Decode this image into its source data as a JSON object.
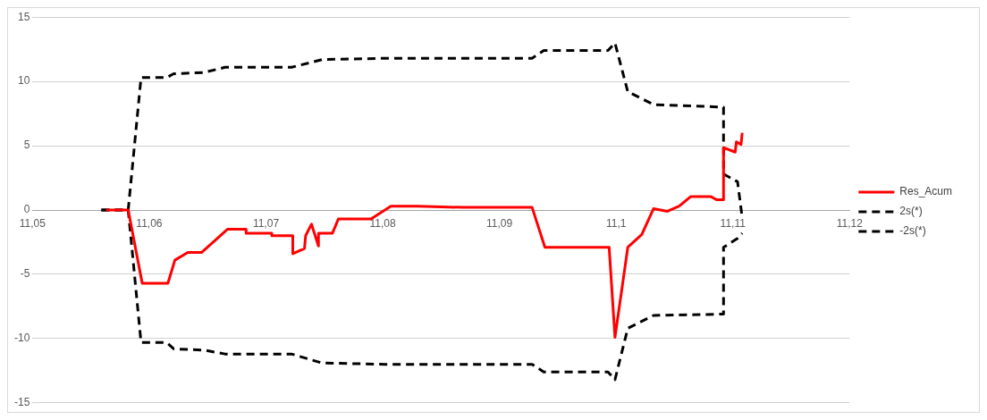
{
  "chart_data": {
    "type": "line",
    "xlim": [
      11.05,
      11.12
    ],
    "ylim": [
      -15,
      15
    ],
    "xticks": [
      {
        "value": 11.05,
        "label": "11,05"
      },
      {
        "value": 11.06,
        "label": "11,06"
      },
      {
        "value": 11.07,
        "label": "11,07"
      },
      {
        "value": 11.08,
        "label": "11,08"
      },
      {
        "value": 11.09,
        "label": "11,09"
      },
      {
        "value": 11.1,
        "label": "11,1"
      },
      {
        "value": 11.11,
        "label": "11,11"
      },
      {
        "value": 11.12,
        "label": "11,12"
      }
    ],
    "yticks": [
      -15,
      -10,
      -5,
      0,
      5,
      10,
      15
    ],
    "grid": "y",
    "legend": "right",
    "series": [
      {
        "name": "Res_Acum",
        "color": "#ff0000",
        "line_style": "solid",
        "x": [
          11.0563,
          11.0582,
          11.0594,
          11.0616,
          11.0622,
          11.0633,
          11.0645,
          11.0667,
          11.0683,
          11.0683,
          11.0705,
          11.0705,
          11.0723,
          11.0723,
          11.0733,
          11.0734,
          11.0739,
          11.0745,
          11.0745,
          11.0757,
          11.0762,
          11.079,
          11.0807,
          11.083,
          11.0869,
          11.0928,
          11.0939,
          11.0994,
          11.0999,
          11.101,
          11.1022,
          11.1032,
          11.1044,
          11.1054,
          11.1064,
          11.1081,
          11.1086,
          11.1092,
          11.1092,
          11.1102,
          11.1103,
          11.1107,
          11.1108
        ],
        "values": [
          0,
          0,
          -5.7,
          -5.7,
          -3.9,
          -3.3,
          -3.3,
          -1.5,
          -1.5,
          -1.8,
          -1.8,
          -2,
          -2,
          -3.4,
          -3,
          -2,
          -1.1,
          -2.8,
          -1.8,
          -1.8,
          -0.7,
          -0.7,
          0.3,
          0.3,
          0.2,
          0.2,
          -2.9,
          -2.9,
          -9.9,
          -2.9,
          -1.9,
          0.1,
          -0.1,
          0.3,
          1.05,
          1.05,
          0.8,
          0.8,
          4.85,
          4.5,
          5.3,
          5.1,
          6
        ]
      },
      {
        "name": "2s(*)",
        "color": "#000000",
        "line_style": "dashed",
        "x": [
          11.0559,
          11.0582,
          11.0593,
          11.0615,
          11.0621,
          11.0647,
          11.0665,
          11.0722,
          11.0748,
          11.0802,
          11.0928,
          11.0938,
          11.0993,
          11.0999,
          11.101,
          11.1032,
          11.1092,
          11.1092,
          11.1104,
          11.1108
        ],
        "values": [
          0,
          0,
          10.3,
          10.3,
          10.6,
          10.7,
          11.1,
          11.1,
          11.7,
          11.8,
          11.8,
          12.4,
          12.4,
          13,
          9.2,
          8.2,
          8,
          2.8,
          2.2,
          -0.6
        ]
      },
      {
        "name": "-2s(*)",
        "color": "#000000",
        "line_style": "dashed",
        "x": [
          11.0559,
          11.0582,
          11.0593,
          11.0615,
          11.0621,
          11.0647,
          11.0665,
          11.0722,
          11.0748,
          11.0802,
          11.0928,
          11.0938,
          11.0993,
          11.0999,
          11.101,
          11.1032,
          11.1092,
          11.1092,
          11.1104,
          11.1108
        ],
        "values": [
          0,
          0,
          -10.3,
          -10.3,
          -10.8,
          -10.9,
          -11.2,
          -11.2,
          -11.9,
          -12,
          -12,
          -12.6,
          -12.6,
          -13.2,
          -9.2,
          -8.2,
          -8.1,
          -2.9,
          -2.2,
          -1.8
        ]
      }
    ]
  }
}
